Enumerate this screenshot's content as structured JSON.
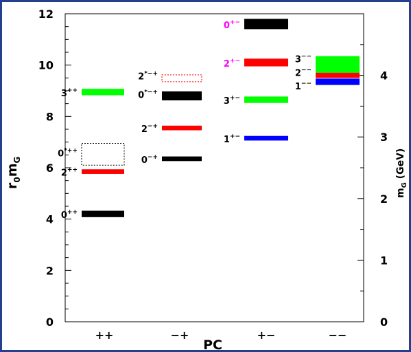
{
  "chart_data": {
    "type": "scatter",
    "xlabel": "PC",
    "ylabel": "r₀m_G",
    "ylabel_main": "r",
    "ylabel_sub": "0",
    "ylabel_tail": "m",
    "ylabel_tail_sub": "G",
    "y2label": "m_G (GeV)",
    "y2label_main": "m",
    "y2label_sub": "G",
    "y2label_tail": " (GeV)",
    "categories": [
      "++",
      "−+",
      "+−",
      "−−"
    ],
    "ylim": [
      0,
      12
    ],
    "yticks": [
      0,
      2,
      4,
      6,
      8,
      10,
      12
    ],
    "y2lim": [
      0,
      5
    ],
    "y2ticks": [
      0,
      1,
      2,
      3,
      4
    ],
    "levels": [
      {
        "cat": 0,
        "state": "0",
        "sup": "++",
        "y": 4.2,
        "thick": 0.25,
        "color": "#000000",
        "style": "solid",
        "label_color": "#000000"
      },
      {
        "cat": 0,
        "state": "2",
        "sup": "++",
        "y": 5.85,
        "thick": 0.18,
        "color": "#ff0000",
        "style": "solid",
        "label_color": "#000000"
      },
      {
        "cat": 0,
        "state": "0",
        "sup": "*++",
        "y": 6.5,
        "y_low": 6.1,
        "y_high": 6.95,
        "color": "#000000",
        "style": "dotted",
        "label_color": "#000000"
      },
      {
        "cat": 0,
        "state": "3",
        "sup": "++",
        "y": 8.95,
        "thick": 0.25,
        "color": "#00ff00",
        "style": "solid",
        "label_color": "#000000"
      },
      {
        "cat": 1,
        "state": "0",
        "sup": "−+",
        "y": 6.35,
        "thick": 0.18,
        "color": "#000000",
        "style": "solid",
        "label_color": "#000000"
      },
      {
        "cat": 1,
        "state": "2",
        "sup": "−+",
        "y": 7.55,
        "thick": 0.18,
        "color": "#ff0000",
        "style": "solid",
        "label_color": "#000000"
      },
      {
        "cat": 1,
        "state": "0",
        "sup": "*−+",
        "y": 8.8,
        "thick": 0.35,
        "color": "#000000",
        "style": "solid",
        "label_color": "#000000"
      },
      {
        "cat": 1,
        "state": "2",
        "sup": "*−+",
        "y": 9.5,
        "y_low": 9.35,
        "y_high": 9.62,
        "color": "#ff0000",
        "style": "dotted",
        "label_color": "#000000"
      },
      {
        "cat": 2,
        "state": "1",
        "sup": "+−",
        "y": 7.15,
        "thick": 0.18,
        "color": "#0000ff",
        "style": "solid",
        "label_color": "#000000"
      },
      {
        "cat": 2,
        "state": "3",
        "sup": "+−",
        "y": 8.65,
        "thick": 0.25,
        "color": "#00ff00",
        "style": "solid",
        "label_color": "#000000"
      },
      {
        "cat": 2,
        "state": "2",
        "sup": "+−",
        "y": 10.1,
        "thick": 0.3,
        "color": "#ff0000",
        "style": "solid",
        "label_color": "#ff00ff"
      },
      {
        "cat": 2,
        "state": "0",
        "sup": "+−",
        "y": 11.6,
        "thick": 0.4,
        "color": "#000000",
        "style": "solid",
        "label_color": "#ff00ff"
      },
      {
        "cat": 3,
        "state": "1",
        "sup": "−−",
        "y": 9.35,
        "thick": 0.25,
        "color": "#0000ff",
        "style": "solid",
        "label_color": "#000000"
      },
      {
        "cat": 3,
        "state": "2",
        "sup": "−−",
        "y": 9.65,
        "thick": 0.3,
        "color": "#ff0000",
        "style": "solid",
        "label_color": "#000000"
      },
      {
        "cat": 3,
        "state": "3",
        "sup": "−−",
        "y": 10.0,
        "y_low": 9.7,
        "y_high": 10.35,
        "color": "#00ff00",
        "style": "solid",
        "label_color": "#000000"
      }
    ]
  }
}
